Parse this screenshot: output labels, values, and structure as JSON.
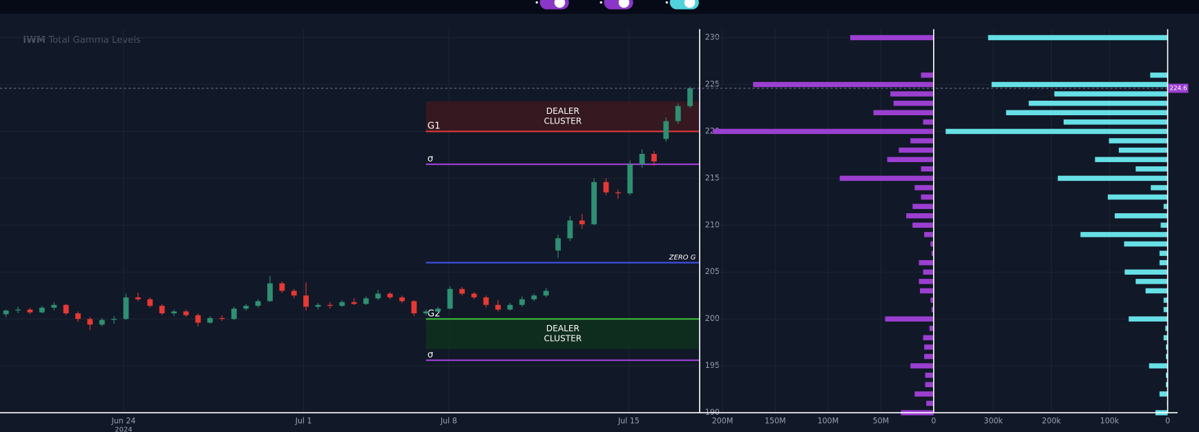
{
  "chart_data": [
    {
      "type": "candlestick",
      "title_bold": "IWM",
      "title": "Total Gamma Levels",
      "x": [
        0.5,
        1.5,
        2.5,
        3.5,
        4.5,
        5.5,
        6.5,
        7.5,
        8.5,
        9.5,
        10.5,
        11.5,
        12.5,
        13.5,
        14.5,
        15.5,
        16.5,
        17.5,
        18.5,
        19.5,
        20.5,
        21.5,
        22.5,
        23.5,
        24.5,
        25.5,
        26.5,
        27.5,
        28.5,
        29.5,
        30.5,
        31.5,
        32.5,
        33.5,
        34.5,
        35.5,
        36.5,
        37.5,
        38.5,
        39.5,
        40.5,
        41.5,
        42.5,
        43.5,
        44.5,
        45.5,
        46.5,
        47.5,
        48.5,
        49.5,
        50.5,
        51.5,
        52.5,
        53.5,
        54.5,
        55.5,
        56.5,
        57.5
      ],
      "open": [
        200.5,
        200.9,
        201.0,
        200.7,
        201.2,
        201.5,
        200.6,
        200.0,
        199.4,
        199.9,
        200.0,
        202.3,
        202.1,
        201.4,
        200.6,
        200.8,
        200.4,
        199.6,
        200.1,
        200.0,
        201.1,
        201.4,
        201.9,
        203.8,
        203.0,
        202.5,
        201.3,
        201.5,
        201.4,
        201.8,
        201.6,
        202.2,
        202.7,
        202.3,
        201.9,
        200.6,
        200.8,
        201.1,
        203.2,
        202.7,
        202.3,
        201.5,
        201.0,
        201.5,
        202.1,
        202.5,
        207.3,
        208.6,
        210.5,
        210.1,
        214.6,
        213.5,
        213.4,
        216.5,
        217.6,
        219.2,
        221.1,
        222.7
      ],
      "high": [
        201.0,
        201.3,
        201.2,
        201.4,
        201.8,
        201.6,
        200.8,
        200.2,
        200.1,
        200.3,
        202.7,
        202.8,
        202.3,
        201.6,
        201.0,
        201.0,
        200.6,
        200.3,
        200.4,
        201.3,
        201.6,
        202.1,
        204.6,
        204.0,
        203.2,
        203.9,
        201.7,
        201.8,
        202.0,
        202.2,
        202.4,
        203.1,
        202.9,
        202.5,
        202.0,
        201.0,
        201.3,
        203.5,
        203.4,
        202.9,
        202.5,
        202.0,
        201.7,
        202.4,
        202.7,
        203.3,
        209.0,
        211.0,
        211.2,
        215.0,
        215.0,
        213.8,
        216.9,
        218.1,
        217.9,
        221.5,
        223.0,
        224.8
      ],
      "low": [
        200.2,
        200.6,
        200.5,
        200.6,
        200.9,
        200.4,
        199.7,
        198.8,
        199.2,
        199.5,
        199.9,
        201.9,
        201.2,
        200.4,
        200.3,
        200.2,
        199.2,
        199.5,
        199.8,
        199.9,
        200.9,
        201.2,
        201.8,
        202.8,
        202.2,
        200.9,
        201.0,
        201.1,
        201.3,
        201.5,
        201.5,
        202.0,
        202.1,
        201.7,
        200.3,
        200.4,
        200.6,
        201.0,
        202.5,
        202.1,
        201.2,
        200.8,
        200.9,
        201.3,
        201.9,
        202.3,
        206.5,
        208.3,
        209.6,
        210.0,
        213.2,
        212.8,
        213.2,
        216.1,
        216.3,
        218.9,
        220.8,
        222.5
      ],
      "close": [
        200.9,
        201.0,
        200.7,
        201.2,
        201.5,
        200.6,
        200.0,
        199.4,
        199.9,
        200.0,
        202.3,
        202.1,
        201.4,
        200.6,
        200.8,
        200.4,
        199.6,
        200.1,
        200.0,
        201.1,
        201.4,
        201.9,
        203.8,
        203.0,
        202.5,
        201.3,
        201.5,
        201.4,
        201.8,
        201.6,
        202.2,
        202.7,
        202.3,
        201.9,
        200.6,
        200.8,
        201.1,
        203.2,
        202.7,
        202.3,
        201.5,
        201.0,
        201.5,
        202.1,
        202.5,
        203.0,
        208.6,
        210.5,
        210.1,
        214.6,
        213.5,
        213.4,
        216.5,
        217.6,
        216.8,
        221.1,
        222.7,
        224.6
      ],
      "up_color": "#2f8f72",
      "down_color": "#e53935",
      "xlim": [
        0,
        58.3
      ],
      "xticks": [
        {
          "value": 10.3,
          "label": "Jun 24"
        },
        {
          "value": 25.3,
          "label": "Jul 1"
        },
        {
          "value": 37.4,
          "label": "Jul 8"
        },
        {
          "value": 52.4,
          "label": "Jul 15"
        }
      ],
      "x_year_label": "2024",
      "ylim": [
        190,
        230.9
      ],
      "yticks": [
        190,
        195,
        200,
        205,
        210,
        215,
        220,
        225,
        230
      ],
      "grid": true,
      "levels": [
        {
          "name": "G1",
          "value": 220,
          "color": "#e0393e",
          "label_position": "left"
        },
        {
          "name": "σ",
          "value": 216.5,
          "color": "#9b3fd1",
          "label_position": "left"
        },
        {
          "name": "ZERO G",
          "value": 206,
          "color": "#3b4fe0",
          "label_position": "right"
        },
        {
          "name": "G2",
          "value": 200,
          "color": "#3cb83c",
          "label_position": "left"
        },
        {
          "name": "σ",
          "value": 195.6,
          "color": "#9b3fd1",
          "label_position": "left"
        }
      ],
      "zones": [
        {
          "label": [
            "DEALER",
            "CLUSTER"
          ],
          "from": 220,
          "to": 223.2,
          "color": "#3a1820"
        },
        {
          "label": [
            "DEALER",
            "CLUSTER"
          ],
          "from": 196.8,
          "to": 200,
          "color": "#10301f"
        }
      ],
      "last_price": 224.6,
      "last_price_color": "#9b3fd1"
    },
    {
      "type": "barh",
      "y": [
        190,
        191,
        192,
        193,
        194,
        195,
        196,
        197,
        198,
        199,
        200,
        201,
        202,
        203,
        204,
        205,
        206,
        207,
        208,
        209,
        210,
        211,
        212,
        213,
        214,
        215,
        216,
        217,
        218,
        219,
        220,
        221,
        222,
        223,
        224,
        225,
        226,
        227,
        228,
        229,
        230
      ],
      "values": [
        31000000,
        7000000,
        18000000,
        8000000,
        8000000,
        22000000,
        9000000,
        9000000,
        10000000,
        4000000,
        46000000,
        2000000,
        3000000,
        13000000,
        14000000,
        10000000,
        14000000,
        2000000,
        3000000,
        9000000,
        20000000,
        26000000,
        20000000,
        12000000,
        18000000,
        89000000,
        12000000,
        44000000,
        33000000,
        22000000,
        209000000,
        10000000,
        57000000,
        38000000,
        41000000,
        171000000,
        12000000,
        0,
        0,
        0,
        79000000
      ],
      "color": "#9b3fd1",
      "xlim": [
        210000000,
        0
      ],
      "xticks": [
        {
          "value": 200000000,
          "label": "200M"
        },
        {
          "value": 150000000,
          "label": "150M"
        },
        {
          "value": 100000000,
          "label": "100M"
        },
        {
          "value": 50000000,
          "label": "50M"
        },
        0
      ],
      "ylim": [
        190,
        230.9
      ],
      "yticks": [
        190,
        195,
        200,
        205,
        210,
        215,
        220,
        225,
        230
      ],
      "grid": true
    },
    {
      "type": "barh",
      "y": [
        190,
        191,
        192,
        193,
        194,
        195,
        196,
        197,
        198,
        199,
        200,
        201,
        202,
        203,
        204,
        205,
        206,
        207,
        208,
        209,
        210,
        211,
        212,
        213,
        214,
        215,
        216,
        217,
        218,
        219,
        220,
        221,
        222,
        223,
        224,
        225,
        226,
        227,
        228,
        229,
        230
      ],
      "values": [
        21000,
        1000,
        14000,
        3000,
        3000,
        32000,
        3000,
        3000,
        7000,
        4000,
        67000,
        7000,
        7000,
        38000,
        55000,
        74000,
        14000,
        14000,
        75000,
        150000,
        12000,
        91000,
        7000,
        103000,
        29000,
        189000,
        55000,
        125000,
        84000,
        101000,
        382000,
        179000,
        278000,
        239000,
        195000,
        303000,
        30000,
        0,
        0,
        0,
        309000
      ],
      "color": "#67dfe6",
      "xlim": [
        400000,
        0
      ],
      "xticks": [
        {
          "value": 300000,
          "label": "300k"
        },
        {
          "value": 200000,
          "label": "200k"
        },
        {
          "value": 100000,
          "label": "100k"
        },
        0
      ],
      "ylim": [
        190,
        230.9
      ],
      "yticks": [
        190,
        195,
        200,
        205,
        210,
        215,
        220,
        225,
        230
      ],
      "grid": true
    }
  ]
}
